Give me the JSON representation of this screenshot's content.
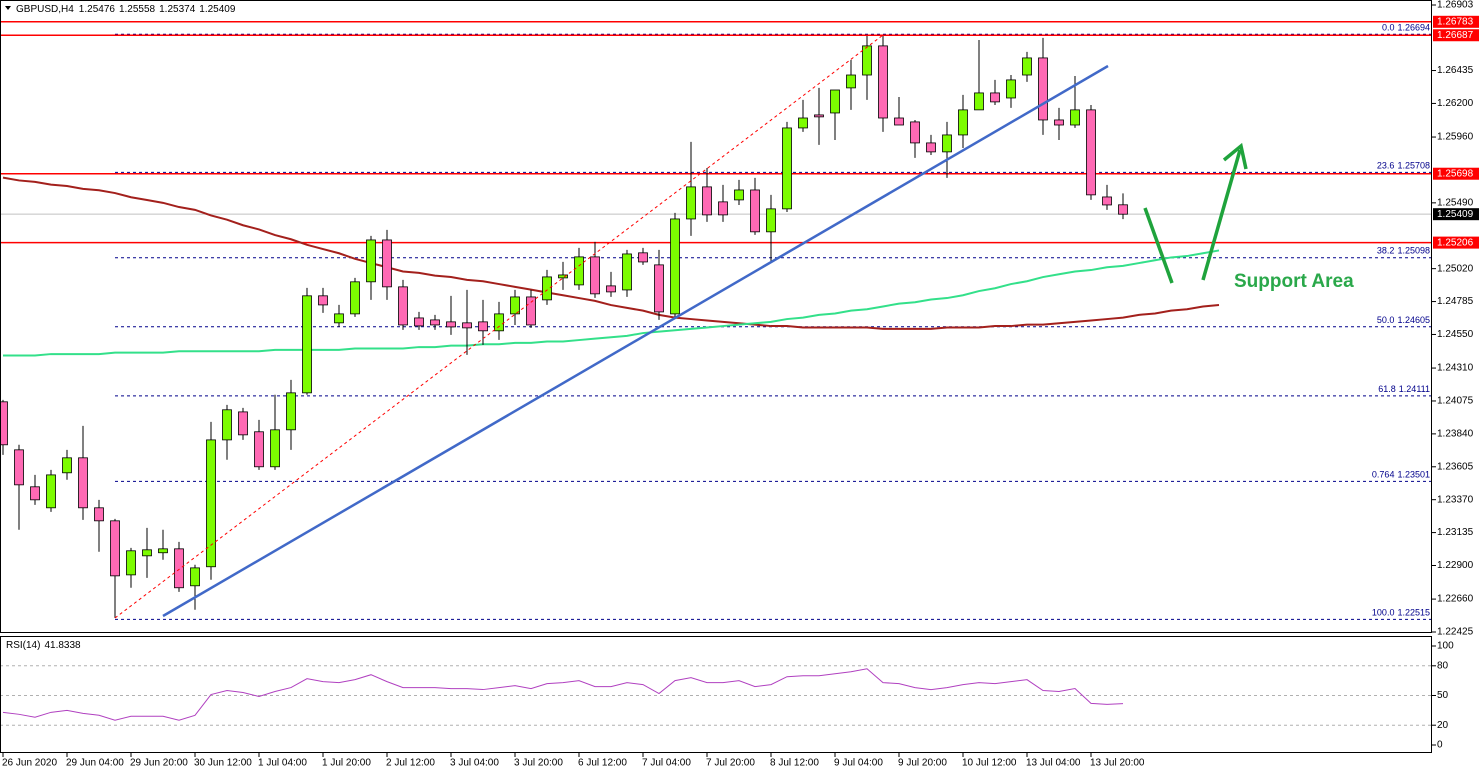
{
  "chart_data": [
    {
      "type": "candlestick",
      "title": "GBPUSD,H4",
      "categories": [
        "26 Jun 2020",
        null,
        null,
        null,
        "29 Jun 04:00",
        null,
        null,
        null,
        "29 Jun 20:00",
        null,
        null,
        null,
        "30 Jun 12:00",
        null,
        null,
        null,
        "1 Jul 04:00",
        null,
        null,
        null,
        "1 Jul 20:00",
        null,
        null,
        null,
        "2 Jul 12:00",
        null,
        null,
        null,
        "3 Jul 04:00",
        null,
        null,
        null,
        "3 Jul 20:00",
        null,
        null,
        null,
        "6 Jul 12:00",
        null,
        null,
        null,
        "7 Jul 04:00",
        null,
        null,
        null,
        "7 Jul 20:00",
        null,
        null,
        null,
        "8 Jul 12:00",
        null,
        null,
        null,
        "9 Jul 04:00",
        null,
        null,
        null,
        "9 Jul 20:00",
        null,
        null,
        null,
        "10 Jul 12:00",
        null,
        null,
        null,
        "13 Jul 04:00",
        null,
        null,
        null,
        "13 Jul 20:00",
        null,
        null,
        null,
        null,
        null,
        null,
        null,
        null
      ],
      "open": [
        1.24069,
        1.23726,
        1.23462,
        1.23312,
        1.23562,
        1.23669,
        1.23312,
        1.23219,
        1.22833,
        1.22969,
        1.22991,
        1.23019,
        1.22755,
        1.22891,
        1.23797,
        1.23997,
        1.23855,
        1.23605,
        1.23869,
        1.24133,
        1.24826,
        1.24633,
        1.24697,
        1.24926,
        1.25225,
        1.2489,
        1.24668,
        1.24654,
        1.2464,
        1.24633,
        1.2464,
        1.24576,
        1.24697,
        1.24818,
        1.24797,
        1.24954,
        1.24904,
        1.25104,
        1.24897,
        1.24868,
        1.25133,
        1.25047,
        1.24697,
        1.25375,
        1.25604,
        1.25497,
        1.25511,
        1.25582,
        1.25283,
        1.25447,
        1.26025,
        1.26118,
        1.26132,
        1.26311,
        1.26403,
        1.26611,
        1.26096,
        1.26068,
        1.25918,
        1.25854,
        1.25975,
        1.26154,
        1.26275,
        1.26239,
        1.26403,
        1.26525,
        1.26082,
        1.26046,
        1.26154,
        1.25532,
        1.25476,
        null,
        null,
        null,
        null,
        null,
        null
      ],
      "high": [
        1.24083,
        1.23762,
        1.23547,
        1.23583,
        1.23726,
        1.23897,
        1.23369,
        1.23233,
        1.23026,
        1.23169,
        1.23155,
        1.23069,
        1.22905,
        1.23926,
        1.24047,
        1.24026,
        1.2394,
        1.24119,
        1.24226,
        1.24883,
        1.24883,
        1.24761,
        1.24954,
        1.25254,
        1.25297,
        1.2494,
        1.24711,
        1.2469,
        1.24826,
        1.24868,
        1.24797,
        1.24783,
        1.24868,
        1.24868,
        1.25011,
        1.25068,
        1.25168,
        1.25211,
        1.24997,
        1.25154,
        1.25168,
        1.25154,
        1.25418,
        1.25925,
        1.25739,
        1.25618,
        1.25654,
        1.25668,
        1.25547,
        1.26068,
        1.26225,
        1.26311,
        1.26282,
        1.26511,
        1.26682,
        1.26682,
        1.26246,
        1.26082,
        1.25975,
        1.26068,
        1.26261,
        1.26653,
        1.26368,
        1.26403,
        1.26568,
        1.26668,
        1.26168,
        1.26396,
        1.26189,
        1.25618,
        1.25558,
        null,
        null,
        null,
        null,
        null,
        null
      ],
      "low": [
        1.2369,
        1.23155,
        1.23333,
        1.23283,
        1.23512,
        1.23226,
        1.22998,
        1.22526,
        1.22741,
        1.22812,
        1.22941,
        1.22712,
        1.22584,
        1.22798,
        1.23655,
        1.23797,
        1.23583,
        1.23583,
        1.23726,
        1.24119,
        1.24704,
        1.24604,
        1.24676,
        1.24797,
        1.24797,
        1.24583,
        1.24583,
        1.24583,
        1.24547,
        1.24404,
        1.24476,
        1.24511,
        1.24618,
        1.24597,
        1.24761,
        1.24868,
        1.24868,
        1.24811,
        1.24818,
        1.24818,
        1.25047,
        1.24654,
        1.24668,
        1.25254,
        1.25354,
        1.25354,
        1.25475,
        1.25261,
        1.25068,
        1.25425,
        1.25997,
        1.25904,
        1.25939,
        1.26154,
        1.26225,
        1.25997,
        1.26046,
        1.25811,
        1.25832,
        1.25668,
        1.25882,
        1.26154,
        1.26189,
        1.26168,
        1.26354,
        1.25975,
        1.25939,
        1.26025,
        1.25511,
        1.2544,
        1.25374,
        null,
        null,
        null,
        null,
        null,
        null
      ],
      "close": [
        1.23762,
        1.23476,
        1.23369,
        1.23547,
        1.23669,
        1.23312,
        1.23219,
        1.22826,
        1.23005,
        1.23012,
        1.23019,
        1.22741,
        1.22883,
        1.23797,
        1.24012,
        1.23833,
        1.23605,
        1.23869,
        1.24133,
        1.24826,
        1.24761,
        1.24697,
        1.24926,
        1.25225,
        1.2489,
        1.24618,
        1.24611,
        1.24618,
        1.24604,
        1.24597,
        1.24576,
        1.24697,
        1.24818,
        1.24618,
        1.24961,
        1.24975,
        1.25104,
        1.2484,
        1.24854,
        1.25125,
        1.25068,
        1.24711,
        1.25375,
        1.25604,
        1.25404,
        1.25404,
        1.25582,
        1.25283,
        1.25447,
        1.26025,
        1.26096,
        1.26104,
        1.26296,
        1.26403,
        1.26611,
        1.26096,
        1.26046,
        1.25918,
        1.25854,
        1.25975,
        1.26154,
        1.26275,
        1.26211,
        1.26368,
        1.26525,
        1.26082,
        1.26046,
        1.26154,
        1.25547,
        1.25475,
        1.25409,
        null,
        null,
        null,
        null,
        null,
        null
      ],
      "bull_color": "#7cfc00",
      "bear_color": "#ff69b4",
      "ylim": [
        1.22425,
        1.26903
      ],
      "yticks": [
        1.26903,
        1.26435,
        {
          "value": 1.262,
          "label": "1.26200"
        },
        {
          "value": 1.2596,
          "label": "1.25960"
        },
        {
          "value": 1.2549,
          "label": "1.25490"
        },
        {
          "value": 1.2502,
          "label": "1.25020"
        },
        1.24785,
        {
          "value": 1.2455,
          "label": "1.24550"
        },
        {
          "value": 1.2431,
          "label": "1.24310"
        },
        1.24075,
        {
          "value": 1.2384,
          "label": "1.23840"
        },
        1.23605,
        {
          "value": 1.2337,
          "label": "1.23370"
        },
        1.23135,
        {
          "value": 1.229,
          "label": "1.22900"
        },
        {
          "value": 1.2266,
          "label": "1.22660"
        },
        1.22425
      ],
      "moving_averages": [
        {
          "color": "#a3201c",
          "values": [
            1.2567,
            1.2565,
            1.2564,
            1.2562,
            1.2561,
            1.2559,
            1.2558,
            1.2556,
            1.2553,
            1.2551,
            1.2549,
            1.2546,
            1.2544,
            1.254,
            1.2537,
            1.2533,
            1.253,
            1.2526,
            1.2523,
            1.2519,
            1.2516,
            1.2513,
            1.2509,
            1.2506,
            1.2503,
            1.25,
            1.2499,
            1.2497,
            1.2496,
            1.2494,
            1.2493,
            1.2491,
            1.2489,
            1.2487,
            1.2485,
            1.2483,
            1.2481,
            1.2479,
            1.2476,
            1.2474,
            1.2472,
            1.2469,
            1.2467,
            1.2466,
            1.2465,
            1.2464,
            1.2463,
            1.2462,
            1.2461,
            1.2461,
            1.246,
            1.246,
            1.246,
            1.246,
            1.246,
            1.2459,
            1.2459,
            1.2459,
            1.2459,
            1.246,
            1.246,
            1.246,
            1.2461,
            1.2461,
            1.2462,
            1.2462,
            1.2463,
            1.2464,
            1.2465,
            1.2466,
            1.2467,
            1.2469,
            1.247,
            1.2472,
            1.2473,
            1.2475,
            1.2476
          ]
        },
        {
          "color": "#33e08a",
          "values": [
            1.244,
            1.244,
            1.244,
            1.2441,
            1.2441,
            1.2441,
            1.2441,
            1.2442,
            1.2442,
            1.2442,
            1.2442,
            1.2443,
            1.2443,
            1.2443,
            1.2443,
            1.2443,
            1.2443,
            1.2444,
            1.2444,
            1.2444,
            1.2444,
            1.2444,
            1.2445,
            1.2445,
            1.2445,
            1.2445,
            1.2446,
            1.2446,
            1.2447,
            1.2447,
            1.2448,
            1.2448,
            1.2449,
            1.2449,
            1.245,
            1.245,
            1.2451,
            1.2452,
            1.2453,
            1.2454,
            1.2456,
            1.2457,
            1.2458,
            1.2459,
            1.246,
            1.2461,
            1.2462,
            1.2463,
            1.2464,
            1.2466,
            1.2467,
            1.2469,
            1.247,
            1.2472,
            1.2473,
            1.2475,
            1.2477,
            1.2478,
            1.248,
            1.2481,
            1.2483,
            1.2486,
            1.2488,
            1.2491,
            1.2493,
            1.2496,
            1.2498,
            1.25,
            1.2501,
            1.2503,
            1.2504,
            1.2506,
            1.2508,
            1.251,
            1.2511,
            1.2513,
            1.2515
          ]
        }
      ],
      "levels": [
        {
          "value": 1.26783,
          "color": "#ff0000"
        },
        {
          "value": 1.26687,
          "color": "#ff0000"
        },
        {
          "value": 1.25698,
          "color": "#ff0000"
        },
        {
          "value": 1.25206,
          "color": "#ff0000"
        }
      ],
      "fibonacci": [
        {
          "level": "0.0",
          "value": 1.26694
        },
        {
          "level": "23.6",
          "value": 1.25708
        },
        {
          "level": "38.2",
          "value": 1.25098
        },
        {
          "level": "50.0",
          "value": 1.24605
        },
        {
          "level": "61.8",
          "value": 1.24111
        },
        {
          "level": "0.764",
          "value": 1.23501
        },
        {
          "level": "100.0",
          "value": 1.22515
        }
      ],
      "annotation": "Support Area"
    },
    {
      "type": "line",
      "title": "RSI(14)",
      "color": "#b040c0",
      "values": [
        33,
        31,
        28,
        33,
        35,
        32,
        30,
        25,
        29,
        29,
        29,
        25,
        30,
        51,
        55,
        53,
        49,
        54,
        58,
        67,
        64,
        63,
        66,
        71,
        64,
        58,
        58,
        58,
        57,
        57,
        56,
        58,
        60,
        57,
        62,
        63,
        65,
        59,
        59,
        63,
        61,
        52,
        65,
        68,
        63,
        63,
        65,
        59,
        61,
        69,
        70,
        70,
        72,
        74,
        77,
        63,
        62,
        58,
        56,
        58,
        61,
        63,
        62,
        64,
        66,
        55,
        54,
        57,
        42,
        41,
        41.8338,
        null,
        null,
        null,
        null,
        null,
        null
      ],
      "ylim": [
        0,
        100
      ],
      "yticks": [
        0,
        20,
        50,
        80,
        100
      ],
      "levels": [
        20,
        50,
        80
      ]
    }
  ]
}
